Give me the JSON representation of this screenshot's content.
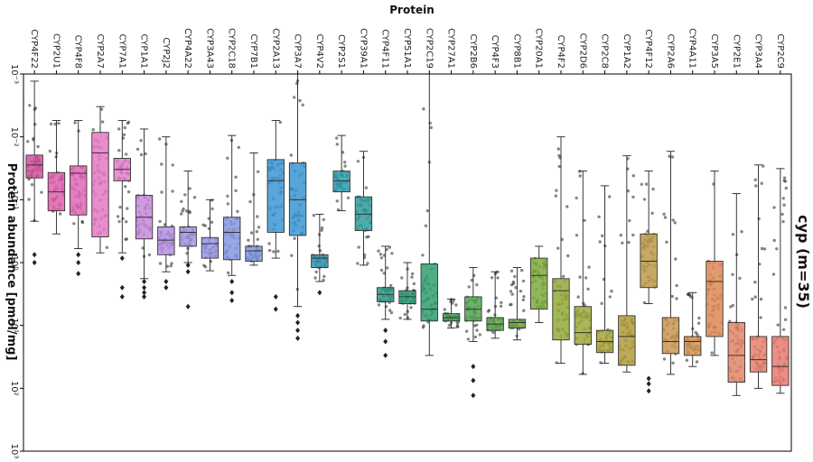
{
  "chart_data": {
    "type": "box",
    "title": "",
    "xlabel": "Protein",
    "ylabel": "Protein abundance [pmol/mg]",
    "yscale": "log",
    "ylim": [
      1000,
      0.001
    ],
    "y_inverted": true,
    "y_tick_labels": [
      "10⁻³",
      "10⁻²",
      "10⁻¹",
      "10⁰",
      "10¹",
      "10²",
      "10³"
    ],
    "side_label": "cyp (m=35)",
    "grid": false,
    "legend": "none",
    "categories": [
      "CYP4F22",
      "CYP2U1",
      "CYP4F8",
      "CYP2A7",
      "CYP7A1",
      "CYP1A1",
      "CYP2J2",
      "CYP4A22",
      "CYP3A43",
      "CYP2C18",
      "CYP7B1",
      "CYP2A13",
      "CYP3A7",
      "CYP4V2",
      "CYP2S1",
      "CYP39A1",
      "CYP4F11",
      "CYP51A1",
      "CYP2C19",
      "CYP27A1",
      "CYP2B6",
      "CYP4F3",
      "CYP8B1",
      "CYP20A1",
      "CYP4F2",
      "CYP2D6",
      "CYP2C8",
      "CYP1A2",
      "CYP4F12",
      "CYP2A6",
      "CYP4A11",
      "CYP3A5",
      "CYP2E1",
      "CYP3A4",
      "CYP2C9"
    ],
    "colors": [
      "#d64f9f",
      "#de5fae",
      "#e066b6",
      "#e478c6",
      "#e280cc",
      "#c88ad8",
      "#b48ee0",
      "#a695e3",
      "#9a98e6",
      "#8796e2",
      "#7f9ae4",
      "#3c96d6",
      "#3a97d4",
      "#3498b6",
      "#2e9fb0",
      "#2e9c9c",
      "#2e9e8a",
      "#2e9e7a",
      "#2f9f6e",
      "#4ea659",
      "#55a652",
      "#5da84c",
      "#6cab47",
      "#7daa3c",
      "#93a93a",
      "#9da83a",
      "#a8a33b",
      "#b09b3c",
      "#bc9a48",
      "#c99650",
      "#d39454",
      "#de8a53",
      "#e28569",
      "#e6806d",
      "#e87a70"
    ],
    "stats": [
      {
        "q1": 0.0195,
        "median": 0.028,
        "q3": 0.045,
        "wlo": 0.0013,
        "whi": 0.22,
        "fliers": [
          0.75,
          1.0
        ]
      },
      {
        "q1": 0.037,
        "median": 0.075,
        "q3": 0.15,
        "wlo": 0.0055,
        "whi": 0.35,
        "fliers": []
      },
      {
        "q1": 0.029,
        "median": 0.038,
        "q3": 0.175,
        "wlo": 0.0055,
        "whi": 0.6,
        "fliers": [
          0.75,
          1.0,
          1.5
        ]
      },
      {
        "q1": 0.0085,
        "median": 0.018,
        "q3": 0.39,
        "wlo": 0.0033,
        "whi": 0.7,
        "fliers": []
      },
      {
        "q1": 0.022,
        "median": 0.033,
        "q3": 0.05,
        "wlo": 0.0055,
        "whi": 0.7,
        "fliers": [
          0.85,
          2.5,
          3.5
        ]
      },
      {
        "q1": 0.085,
        "median": 0.19,
        "q3": 0.42,
        "wlo": 0.0075,
        "whi": 1.8,
        "fliers": [
          2.0,
          2.5,
          3.0,
          3.5
        ]
      },
      {
        "q1": 0.27,
        "median": 0.44,
        "q3": 0.75,
        "wlo": 0.01,
        "whi": 1.4,
        "fliers": [
          2.0,
          2.5
        ]
      },
      {
        "q1": 0.27,
        "median": 0.33,
        "q3": 0.55,
        "wlo": 0.035,
        "whi": 1.0,
        "fliers": [
          1.1,
          1.4,
          5.0
        ]
      },
      {
        "q1": 0.4,
        "median": 0.5,
        "q3": 0.85,
        "wlo": 0.1,
        "whi": 1.35,
        "fliers": []
      },
      {
        "q1": 0.19,
        "median": 0.33,
        "q3": 0.9,
        "wlo": 0.0095,
        "whi": 1.6,
        "fliers": [
          2.0,
          3.0,
          4.0
        ]
      },
      {
        "q1": 0.55,
        "median": 0.65,
        "q3": 0.95,
        "wlo": 0.018,
        "whi": 1.1,
        "fliers": []
      },
      {
        "q1": 0.023,
        "median": 0.05,
        "q3": 0.33,
        "wlo": 0.0055,
        "whi": 0.85,
        "fliers": [
          3.5,
          5.5
        ]
      },
      {
        "q1": 0.026,
        "median": 0.1,
        "q3": 0.37,
        "wlo": 0.001,
        "whi": 5.0,
        "fliers": [
          7.0,
          9.0,
          12.0,
          16.0
        ]
      },
      {
        "q1": 0.75,
        "median": 0.85,
        "q3": 1.2,
        "wlo": 0.17,
        "whi": 2.0,
        "fliers": [
          3.0
        ]
      },
      {
        "q1": 0.035,
        "median": 0.05,
        "q3": 0.075,
        "wlo": 0.0095,
        "whi": 0.15,
        "fliers": []
      },
      {
        "q1": 0.09,
        "median": 0.17,
        "q3": 0.31,
        "wlo": 0.017,
        "whi": 1.1,
        "fliers": []
      },
      {
        "q1": 2.5,
        "median": 3.2,
        "q3": 4.2,
        "wlo": 0.55,
        "whi": 8.0,
        "fliers": [
          12.0,
          18.0,
          30.0
        ]
      },
      {
        "q1": 2.8,
        "median": 3.5,
        "q3": 4.5,
        "wlo": 1.0,
        "whi": 8.0,
        "fliers": []
      },
      {
        "q1": 1.05,
        "median": 5.5,
        "q3": 8.5,
        "wlo": 0.001,
        "whi": 30.0,
        "fliers": []
      },
      {
        "q1": 6.5,
        "median": 7.5,
        "q3": 8.5,
        "wlo": 3.8,
        "whi": 11.0,
        "fliers": []
      },
      {
        "q1": 3.5,
        "median": 5.5,
        "q3": 8.5,
        "wlo": 1.2,
        "whi": 18.0,
        "fliers": [
          45.0,
          75.0,
          130.0
        ]
      },
      {
        "q1": 7.5,
        "median": 9.5,
        "q3": 12.0,
        "wlo": 1.4,
        "whi": 16.0,
        "fliers": []
      },
      {
        "q1": 8.0,
        "median": 9.0,
        "q3": 11.0,
        "wlo": 1.2,
        "whi": 17.0,
        "fliers": []
      },
      {
        "q1": 0.85,
        "median": 1.6,
        "q3": 5.5,
        "wlo": 0.55,
        "whi": 9.0,
        "fliers": []
      },
      {
        "q1": 1.8,
        "median": 2.8,
        "q3": 17.0,
        "wlo": 0.01,
        "whi": 40.0,
        "fliers": []
      },
      {
        "q1": 5.0,
        "median": 13.0,
        "q3": 20.0,
        "wlo": 0.035,
        "whi": 60.0,
        "fliers": []
      },
      {
        "q1": 12.0,
        "median": 18.0,
        "q3": 27.0,
        "wlo": 0.06,
        "whi": 40.0,
        "fliers": []
      },
      {
        "q1": 7.0,
        "median": 15.0,
        "q3": 43.0,
        "wlo": 0.02,
        "whi": 55.0,
        "fliers": []
      },
      {
        "q1": 0.35,
        "median": 0.95,
        "q3": 2.5,
        "wlo": 0.035,
        "whi": 4.5,
        "fliers": [
          70.0,
          85.0,
          110.0
        ]
      },
      {
        "q1": 7.5,
        "median": 18.0,
        "q3": 28.0,
        "wlo": 0.017,
        "whi": 60.0,
        "fliers": []
      },
      {
        "q1": 15.0,
        "median": 18.0,
        "q3": 30.0,
        "wlo": 3.0,
        "whi": 45.0,
        "fliers": []
      },
      {
        "q1": 0.95,
        "median": 2.0,
        "q3": 15.0,
        "wlo": 0.035,
        "whi": 30.0,
        "fliers": []
      },
      {
        "q1": 9.0,
        "median": 30.0,
        "q3": 80.0,
        "wlo": 0.08,
        "whi": 130.0,
        "fliers": []
      },
      {
        "q1": 15.0,
        "median": 35.0,
        "q3": 55.0,
        "wlo": 0.028,
        "whi": 100.0,
        "fliers": []
      },
      {
        "q1": 15.0,
        "median": 45.0,
        "q3": 90.0,
        "wlo": 0.032,
        "whi": 120.0,
        "fliers": []
      }
    ]
  }
}
